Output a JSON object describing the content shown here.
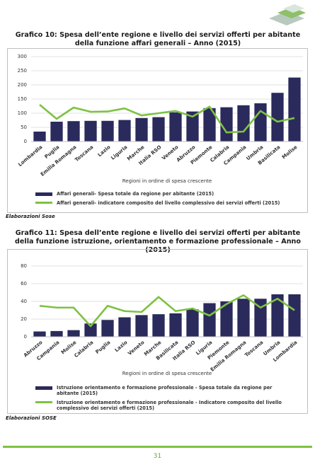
{
  "chart_data": [
    {
      "type": "bar_line",
      "title": "Grafico 10: Spesa dell’ente regione e livello dei servizi offerti per abitante della funzione affari generali – Anno (2015)",
      "x_label": "Regioni in ordine di spesa crescente",
      "categories": [
        "Lombardia",
        "Puglia",
        "Emilia Romagna",
        "Toscana",
        "Lazio",
        "Liguria",
        "Marche",
        "Italia RSO",
        "Veneto",
        "Abruzzo",
        "Piemonte",
        "Calabria",
        "Campania",
        "Umbria",
        "Basilicata",
        "Molise"
      ],
      "series": [
        {
          "name": "Affari generali- Spesa totale da regione per abitante (2015)",
          "kind": "bar",
          "color": "#2b2a5c",
          "values": [
            35,
            70,
            72,
            73,
            73,
            76,
            83,
            86,
            103,
            106,
            118,
            121,
            128,
            135,
            172,
            226
          ]
        },
        {
          "name": "Affari generali- indicatore composito del livello complessivo dei servizi offerti (2015)",
          "kind": "line",
          "color": "#7dc242",
          "values": [
            130,
            80,
            120,
            105,
            106,
            117,
            92,
            100,
            108,
            88,
            123,
            32,
            35,
            108,
            70,
            83
          ]
        }
      ],
      "ylim": [
        0,
        300
      ],
      "yticks": [
        0,
        50,
        100,
        150,
        200,
        250,
        300
      ],
      "grid": true,
      "source": "Elaborazioni Sose"
    },
    {
      "type": "bar_line",
      "title": "Grafico 11: Spesa dell’ente regione e livello dei servizi offerti per abitante della funzione istruzione, orientamento e formazione professionale – Anno (2015)",
      "x_label": "Regioni in ordine di spesa crescente",
      "categories": [
        "Abruzzo",
        "Campania",
        "Molise",
        "Calabria",
        "Puglia",
        "Lazio",
        "Veneto",
        "Marche",
        "Basilicata",
        "Italia RSO",
        "Liguria",
        "Piemonte",
        "Emilia Romagna",
        "Toscana",
        "Umbria",
        "Lombardia"
      ],
      "series": [
        {
          "name": "Istruzione orientamento e formazione professionale - Spesa totale da regione per abitante (2015)",
          "kind": "bar",
          "color": "#2b2a5c",
          "values": [
            6,
            6.5,
            7.5,
            15,
            19,
            22,
            24.5,
            25.5,
            26.5,
            31,
            38,
            40,
            43,
            43,
            48,
            48
          ]
        },
        {
          "name": "Istruzione orientamento e formazione professionale - Indicatore composito del livello complessivo dei servizi offerti (2015)",
          "kind": "line",
          "color": "#7dc242",
          "values": [
            35,
            33,
            33,
            12,
            35,
            29,
            28,
            45,
            29,
            32,
            24,
            37,
            47,
            33,
            43,
            30
          ]
        }
      ],
      "ylim": [
        0,
        80
      ],
      "yticks": [
        0,
        20,
        40,
        60,
        80
      ],
      "grid": true,
      "source": "Elaborazioni SOSE"
    }
  ],
  "page_number": "31"
}
